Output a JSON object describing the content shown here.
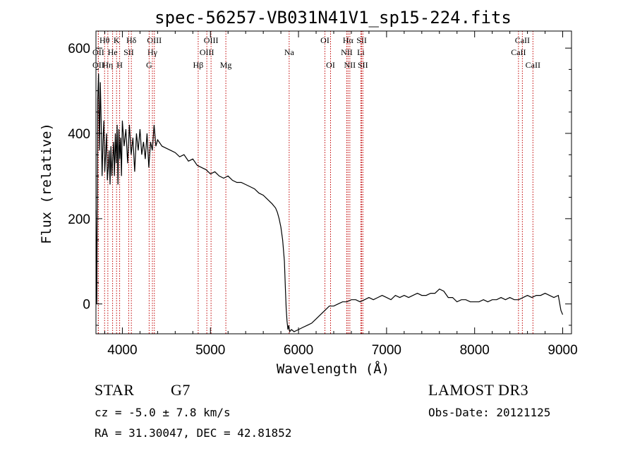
{
  "chart_data": {
    "type": "line",
    "title": "spec-56257-VB031N41V1_sp15-224.fits",
    "xlabel": "Wavelength (Å)",
    "ylabel": "Flux (relative)",
    "xlim": [
      3700,
      9100
    ],
    "ylim": [
      -70,
      640
    ],
    "xticks": [
      4000,
      5000,
      6000,
      7000,
      8000,
      9000
    ],
    "yticks": [
      0,
      200,
      400,
      600
    ],
    "series": [
      {
        "name": "flux",
        "x": [
          3700,
          3710,
          3720,
          3730,
          3740,
          3750,
          3760,
          3770,
          3780,
          3790,
          3800,
          3810,
          3820,
          3830,
          3840,
          3850,
          3860,
          3870,
          3880,
          3890,
          3900,
          3910,
          3920,
          3930,
          3940,
          3950,
          3960,
          3970,
          3980,
          3990,
          4000,
          4020,
          4040,
          4060,
          4080,
          4100,
          4120,
          4140,
          4160,
          4180,
          4200,
          4220,
          4240,
          4260,
          4280,
          4300,
          4320,
          4340,
          4360,
          4380,
          4400,
          4450,
          4500,
          4550,
          4600,
          4650,
          4700,
          4750,
          4800,
          4850,
          4900,
          4950,
          5000,
          5050,
          5100,
          5150,
          5200,
          5250,
          5300,
          5350,
          5400,
          5450,
          5500,
          5550,
          5600,
          5650,
          5700,
          5720,
          5740,
          5760,
          5780,
          5800,
          5820,
          5840,
          5850,
          5860,
          5870,
          5880,
          5890,
          5900,
          5920,
          5950,
          6000,
          6050,
          6100,
          6150,
          6200,
          6250,
          6300,
          6350,
          6400,
          6450,
          6500,
          6550,
          6600,
          6650,
          6700,
          6750,
          6800,
          6850,
          6900,
          6950,
          7000,
          7050,
          7100,
          7150,
          7200,
          7250,
          7300,
          7350,
          7400,
          7450,
          7500,
          7550,
          7600,
          7650,
          7700,
          7750,
          7800,
          7850,
          7900,
          7950,
          8000,
          8050,
          8100,
          8150,
          8200,
          8250,
          8300,
          8350,
          8400,
          8450,
          8500,
          8550,
          8600,
          8650,
          8700,
          8750,
          8800,
          8850,
          8900,
          8950,
          8980,
          9000
        ],
        "values": [
          220,
          0,
          480,
          540,
          360,
          520,
          420,
          300,
          380,
          430,
          310,
          350,
          400,
          290,
          320,
          360,
          280,
          370,
          300,
          340,
          380,
          300,
          400,
          330,
          420,
          280,
          410,
          340,
          390,
          300,
          430,
          370,
          410,
          330,
          420,
          350,
          390,
          310,
          400,
          360,
          410,
          350,
          380,
          340,
          400,
          320,
          380,
          360,
          420,
          370,
          385,
          370,
          365,
          360,
          355,
          345,
          350,
          335,
          340,
          325,
          320,
          315,
          305,
          310,
          300,
          295,
          300,
          290,
          285,
          285,
          280,
          275,
          270,
          260,
          255,
          245,
          235,
          230,
          225,
          215,
          200,
          180,
          150,
          100,
          40,
          -10,
          -40,
          -60,
          -50,
          -65,
          -60,
          -65,
          -60,
          -55,
          -50,
          -45,
          -35,
          -25,
          -15,
          -5,
          -5,
          0,
          5,
          5,
          10,
          10,
          5,
          10,
          15,
          10,
          15,
          20,
          15,
          10,
          20,
          15,
          20,
          15,
          20,
          25,
          20,
          20,
          25,
          25,
          35,
          30,
          15,
          15,
          5,
          10,
          10,
          5,
          5,
          5,
          10,
          5,
          10,
          10,
          15,
          10,
          15,
          10,
          10,
          15,
          20,
          15,
          20,
          20,
          25,
          20,
          15,
          20,
          -15,
          -25
        ]
      }
    ],
    "lines": [
      {
        "label": "Hθ",
        "x": 3798,
        "row": 1
      },
      {
        "label": "OII",
        "x": 3727,
        "row": 2
      },
      {
        "label": "OII",
        "x": 3727,
        "row": 3
      },
      {
        "label": "Hη",
        "x": 3835,
        "row": 3
      },
      {
        "label": "K",
        "x": 3934,
        "row": 1
      },
      {
        "label": "He",
        "x": 3889,
        "row": 2
      },
      {
        "label": "H",
        "x": 3969,
        "row": 3
      },
      {
        "label": "SII",
        "x": 4072,
        "row": 2
      },
      {
        "label": "Hδ",
        "x": 4102,
        "row": 1
      },
      {
        "label": "OIII",
        "x": 4363,
        "row": 1
      },
      {
        "label": "Hγ",
        "x": 4341,
        "row": 2
      },
      {
        "label": "G",
        "x": 4304,
        "row": 3
      },
      {
        "label": "Hβ",
        "x": 4861,
        "row": 3
      },
      {
        "label": "OIII",
        "x": 5007,
        "row": 1
      },
      {
        "label": "OIII",
        "x": 4959,
        "row": 2
      },
      {
        "label": "Mg",
        "x": 5175,
        "row": 3
      },
      {
        "label": "Na",
        "x": 5894,
        "row": 2
      },
      {
        "label": "OI",
        "x": 6300,
        "row": 1
      },
      {
        "label": "OI",
        "x": 6364,
        "row": 3
      },
      {
        "label": "Hα",
        "x": 6563,
        "row": 1
      },
      {
        "label": "NII",
        "x": 6548,
        "row": 2
      },
      {
        "label": "NII",
        "x": 6583,
        "row": 3
      },
      {
        "label": "SII",
        "x": 6717,
        "row": 1
      },
      {
        "label": "Li",
        "x": 6708,
        "row": 2
      },
      {
        "label": "SII",
        "x": 6731,
        "row": 3
      },
      {
        "label": "CaII",
        "x": 8542,
        "row": 1
      },
      {
        "label": "CaII",
        "x": 8498,
        "row": 2
      },
      {
        "label": "CaII",
        "x": 8662,
        "row": 3
      }
    ]
  },
  "info": {
    "class": "STAR",
    "subclass": "G7",
    "survey": "LAMOST DR3",
    "cz": "cz = -5.0 ± 7.8 km/s",
    "obs_date": "Obs-Date: 20121125",
    "coords": "RA =  31.30047, DEC =  42.81852"
  },
  "colors": {
    "lines": "#c00000",
    "spectrum": "#000000",
    "axes": "#000000"
  }
}
